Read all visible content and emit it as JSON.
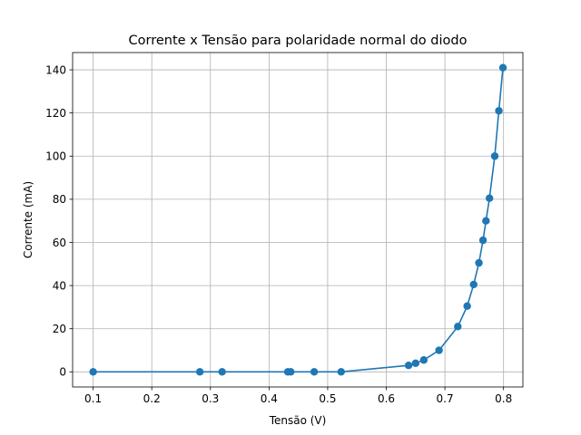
{
  "chart_data": {
    "type": "line",
    "title": "Corrente x Tensão para polaridade normal do diodo",
    "xlabel": "Tensão (V)",
    "ylabel": "Corrente (mA)",
    "xlim": [
      0.065,
      0.833
    ],
    "ylim": [
      -7,
      148
    ],
    "xticks": [
      0.1,
      0.2,
      0.3,
      0.4,
      0.5,
      0.6,
      0.7,
      0.8
    ],
    "xtick_labels": [
      "0.1",
      "0.2",
      "0.3",
      "0.4",
      "0.5",
      "0.6",
      "0.7",
      "0.8"
    ],
    "yticks": [
      0,
      20,
      40,
      60,
      80,
      100,
      120,
      140
    ],
    "ytick_labels": [
      "0",
      "20",
      "40",
      "60",
      "80",
      "100",
      "120",
      "140"
    ],
    "grid": true,
    "markers": true,
    "color": "#1f77b4",
    "series": [
      {
        "x": [
          0.1,
          0.282,
          0.32,
          0.432,
          0.437,
          0.477,
          0.523,
          0.638,
          0.65,
          0.664,
          0.69,
          0.722,
          0.738,
          0.749,
          0.758,
          0.765,
          0.77,
          0.776,
          0.785,
          0.792,
          0.799
        ],
        "y": [
          0,
          0,
          0,
          0,
          0,
          0,
          0,
          3,
          4,
          5.5,
          10,
          21,
          30.5,
          40.5,
          50.5,
          61,
          70,
          80.5,
          100,
          121,
          141
        ]
      }
    ]
  }
}
